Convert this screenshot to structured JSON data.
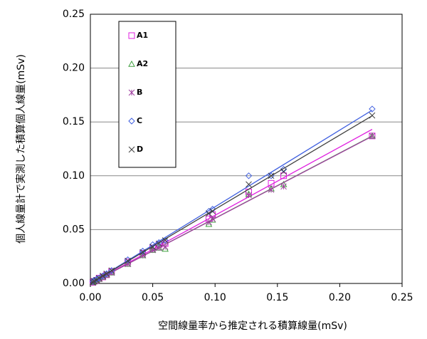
{
  "chart_data": {
    "type": "scatter",
    "x_label": "空間線量率から推定される積算線量(mSv)",
    "y_label": "個人線量計で実測した積算個人線量(mSv)",
    "xlim": [
      0,
      0.25
    ],
    "ylim": [
      0,
      0.25
    ],
    "xticks": [
      {
        "value": 0,
        "label": "0.00"
      },
      {
        "value": 0.05,
        "label": "0.05"
      },
      {
        "value": 0.1,
        "label": "0.10"
      },
      {
        "value": 0.15,
        "label": "0.15"
      },
      {
        "value": 0.2,
        "label": "0.20"
      },
      {
        "value": 0.25,
        "label": "0.25"
      }
    ],
    "yticks": [
      {
        "value": 0,
        "label": "0.00"
      },
      {
        "value": 0.05,
        "label": "0.05"
      },
      {
        "value": 0.1,
        "label": "0.10"
      },
      {
        "value": 0.15,
        "label": "0.15"
      },
      {
        "value": 0.2,
        "label": "0.20"
      },
      {
        "value": 0.25,
        "label": "0.25"
      }
    ],
    "grid": true,
    "trendline": true,
    "legend": "upper left",
    "series": [
      {
        "name": "A1",
        "color": "#e020e0",
        "marker": "square",
        "x": [
          0.002,
          0.003,
          0.005,
          0.007,
          0.01,
          0.013,
          0.017,
          0.03,
          0.042,
          0.05,
          0.055,
          0.06,
          0.095,
          0.098,
          0.127,
          0.145,
          0.155,
          0.226
        ],
        "values": [
          0.001,
          0.002,
          0.003,
          0.005,
          0.006,
          0.008,
          0.011,
          0.02,
          0.028,
          0.033,
          0.036,
          0.037,
          0.06,
          0.064,
          0.085,
          0.093,
          0.1,
          0.137
        ]
      },
      {
        "name": "A2",
        "color": "#40a040",
        "marker": "triangle",
        "x": [
          0.002,
          0.003,
          0.005,
          0.007,
          0.01,
          0.013,
          0.017,
          0.03,
          0.042,
          0.05,
          0.055,
          0.06,
          0.095,
          0.098,
          0.127,
          0.145,
          0.155,
          0.226
        ],
        "values": [
          0.001,
          0.002,
          0.003,
          0.004,
          0.006,
          0.008,
          0.01,
          0.018,
          0.026,
          0.031,
          0.033,
          0.032,
          0.055,
          0.059,
          0.083,
          0.088,
          0.092,
          0.137
        ]
      },
      {
        "name": "B",
        "color": "#a040a0",
        "marker": "asterisk",
        "x": [
          0.002,
          0.003,
          0.005,
          0.007,
          0.01,
          0.013,
          0.017,
          0.03,
          0.042,
          0.05,
          0.055,
          0.06,
          0.095,
          0.098,
          0.127,
          0.145,
          0.155,
          0.226
        ],
        "values": [
          0.001,
          0.002,
          0.003,
          0.004,
          0.006,
          0.008,
          0.01,
          0.018,
          0.026,
          0.031,
          0.033,
          0.034,
          0.057,
          0.06,
          0.082,
          0.087,
          0.09,
          0.137
        ]
      },
      {
        "name": "C",
        "color": "#4060e0",
        "marker": "diamond",
        "x": [
          0.002,
          0.003,
          0.005,
          0.007,
          0.01,
          0.013,
          0.017,
          0.03,
          0.042,
          0.05,
          0.055,
          0.06,
          0.095,
          0.098,
          0.127,
          0.145,
          0.155,
          0.226
        ],
        "values": [
          0.002,
          0.003,
          0.004,
          0.005,
          0.007,
          0.009,
          0.012,
          0.022,
          0.03,
          0.036,
          0.038,
          0.04,
          0.067,
          0.069,
          0.1,
          0.1,
          0.106,
          0.162
        ]
      },
      {
        "name": "D",
        "color": "#404040",
        "marker": "cross",
        "x": [
          0.002,
          0.003,
          0.005,
          0.007,
          0.01,
          0.013,
          0.017,
          0.03,
          0.042,
          0.05,
          0.055,
          0.06,
          0.095,
          0.098,
          0.127,
          0.145,
          0.155,
          0.226
        ],
        "values": [
          0.001,
          0.002,
          0.003,
          0.005,
          0.007,
          0.009,
          0.012,
          0.021,
          0.029,
          0.034,
          0.037,
          0.04,
          0.065,
          0.067,
          0.092,
          0.1,
          0.104,
          0.156
        ]
      }
    ]
  }
}
